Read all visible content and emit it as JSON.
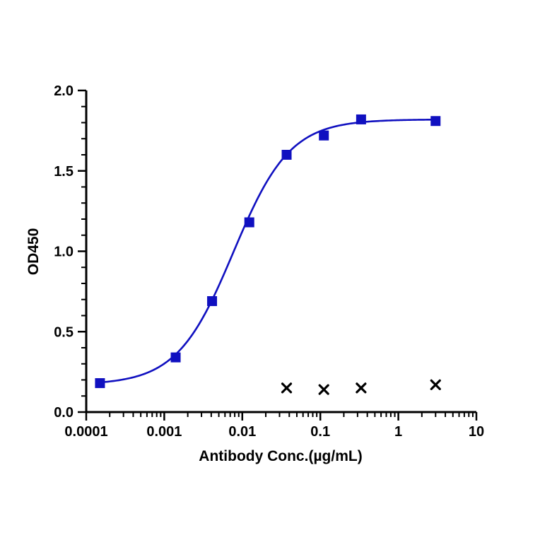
{
  "chart_data": {
    "type": "scatter",
    "title": "",
    "xlabel": "Antibody Conc.(µg/mL)",
    "ylabel": "OD450",
    "x_scale": "log",
    "xlim": [
      0.0001,
      10
    ],
    "ylim": [
      0,
      2.0
    ],
    "x_tick_labels": [
      "0.0001",
      "0.001",
      "0.01",
      "0.1",
      "1",
      "10"
    ],
    "y_tick_labels": [
      "0.0",
      "0.5",
      "1.0",
      "1.5",
      "2.0"
    ],
    "grid": false,
    "legend": "none",
    "series": [
      {
        "marker": "square",
        "color": "#1010c0",
        "has_fit_curve": true,
        "x": [
          0.00015,
          0.0014,
          0.0041,
          0.0123,
          0.037,
          0.111,
          0.333,
          3.0
        ],
        "y": [
          0.18,
          0.34,
          0.69,
          1.18,
          1.6,
          1.72,
          1.82,
          1.81
        ],
        "fit": {
          "model": "4PL",
          "bottom": 0.17,
          "top": 1.82,
          "ec50": 0.0077,
          "hill": 1.2
        }
      },
      {
        "marker": "x",
        "color": "#000000",
        "has_fit_curve": false,
        "x": [
          0.037,
          0.111,
          0.333,
          3.0
        ],
        "y": [
          0.15,
          0.14,
          0.15,
          0.17
        ]
      }
    ]
  }
}
